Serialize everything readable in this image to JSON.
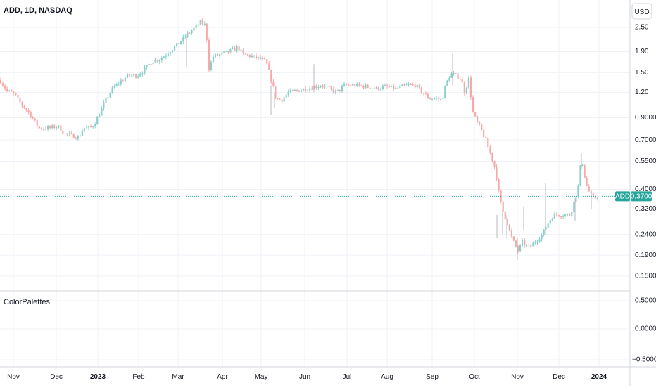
{
  "header": {
    "symbol_title": "ADD, 1D, NASDAQ"
  },
  "currency_button": "USD",
  "indicator_pane": {
    "title": "ColorPalettes",
    "y_ticks": [
      "0.5000",
      "0.0000",
      "−0.5000"
    ]
  },
  "price_badge": {
    "symbol": "ADD",
    "value": "0.3700"
  },
  "colors": {
    "up": "#26a69a",
    "down": "#ef5350",
    "up_light": "#89d0c9",
    "down_light": "#f7a9a7",
    "grid": "#eef1f6",
    "text": "#131722",
    "badge": "#26a69a"
  },
  "chart_data": {
    "type": "candlestick",
    "y_scale": "log",
    "ylim": [
      0.133,
      3.2
    ],
    "y_ticks": [
      {
        "label": "2.50",
        "value": 2.5
      },
      {
        "label": "1.90",
        "value": 1.9
      },
      {
        "label": "1.50",
        "value": 1.5
      },
      {
        "label": "1.20",
        "value": 1.2
      },
      {
        "label": "0.9000",
        "value": 0.9
      },
      {
        "label": "0.7000",
        "value": 0.7
      },
      {
        "label": "0.5500",
        "value": 0.55
      },
      {
        "label": "0.4000",
        "value": 0.4
      },
      {
        "label": "0.3200",
        "value": 0.32
      },
      {
        "label": "0.2400",
        "value": 0.24
      },
      {
        "label": "0.1900",
        "value": 0.19
      },
      {
        "label": "0.1500",
        "value": 0.15
      }
    ],
    "x_ticks": [
      {
        "label": "Nov",
        "bold": false
      },
      {
        "label": "Dec",
        "bold": false
      },
      {
        "label": "2023",
        "bold": true
      },
      {
        "label": "Feb",
        "bold": false
      },
      {
        "label": "Mar",
        "bold": false
      },
      {
        "label": "Apr",
        "bold": false
      },
      {
        "label": "May",
        "bold": false
      },
      {
        "label": "Jun",
        "bold": false
      },
      {
        "label": "Jul",
        "bold": false
      },
      {
        "label": "Aug",
        "bold": false
      },
      {
        "label": "Sep",
        "bold": false
      },
      {
        "label": "Oct",
        "bold": false
      },
      {
        "label": "Nov",
        "bold": false
      },
      {
        "label": "Dec",
        "bold": false
      },
      {
        "label": "2024",
        "bold": true
      }
    ],
    "series_anchor": [
      [
        0,
        1.38
      ],
      [
        10,
        1.22
      ],
      [
        20,
        1.18
      ],
      [
        30,
        1.05
      ],
      [
        42,
        0.95
      ],
      [
        55,
        0.8
      ],
      [
        70,
        0.8
      ],
      [
        82,
        0.82
      ],
      [
        92,
        0.75
      ],
      [
        105,
        0.73
      ],
      [
        112,
        0.72
      ],
      [
        118,
        0.8
      ],
      [
        128,
        0.8
      ],
      [
        135,
        0.85
      ],
      [
        142,
        0.95
      ],
      [
        150,
        1.1
      ],
      [
        160,
        1.25
      ],
      [
        170,
        1.35
      ],
      [
        182,
        1.45
      ],
      [
        195,
        1.45
      ],
      [
        205,
        1.55
      ],
      [
        215,
        1.7
      ],
      [
        228,
        1.75
      ],
      [
        240,
        1.9
      ],
      [
        255,
        2.1
      ],
      [
        265,
        2.3
      ],
      [
        275,
        2.45
      ],
      [
        285,
        2.65
      ],
      [
        290,
        2.6
      ],
      [
        293,
        2.5
      ],
      [
        296,
        1.55
      ],
      [
        303,
        1.8
      ],
      [
        315,
        1.85
      ],
      [
        325,
        1.9
      ],
      [
        338,
        2.0
      ],
      [
        345,
        1.85
      ],
      [
        358,
        1.8
      ],
      [
        370,
        1.75
      ],
      [
        378,
        1.7
      ],
      [
        385,
        1.4
      ],
      [
        392,
        1.12
      ],
      [
        400,
        1.1
      ],
      [
        410,
        1.2
      ],
      [
        420,
        1.22
      ],
      [
        435,
        1.25
      ],
      [
        448,
        1.28
      ],
      [
        458,
        1.3
      ],
      [
        468,
        1.25
      ],
      [
        478,
        1.2
      ],
      [
        490,
        1.3
      ],
      [
        505,
        1.3
      ],
      [
        520,
        1.28
      ],
      [
        535,
        1.25
      ],
      [
        548,
        1.28
      ],
      [
        562,
        1.25
      ],
      [
        578,
        1.3
      ],
      [
        590,
        1.3
      ],
      [
        600,
        1.2
      ],
      [
        610,
        1.12
      ],
      [
        620,
        1.12
      ],
      [
        628,
        1.1
      ],
      [
        633,
        1.3
      ],
      [
        640,
        1.48
      ],
      [
        648,
        1.45
      ],
      [
        655,
        1.4
      ],
      [
        660,
        1.2
      ],
      [
        666,
        1.4
      ],
      [
        672,
        0.95
      ],
      [
        678,
        0.85
      ],
      [
        684,
        0.78
      ],
      [
        690,
        0.7
      ],
      [
        698,
        0.58
      ],
      [
        704,
        0.5
      ],
      [
        710,
        0.36
      ],
      [
        715,
        0.31
      ],
      [
        720,
        0.28
      ],
      [
        725,
        0.24
      ],
      [
        730,
        0.22
      ],
      [
        736,
        0.2
      ],
      [
        742,
        0.22
      ],
      [
        748,
        0.21
      ],
      [
        754,
        0.21
      ],
      [
        762,
        0.225
      ],
      [
        770,
        0.24
      ],
      [
        778,
        0.27
      ],
      [
        786,
        0.3
      ],
      [
        794,
        0.3
      ],
      [
        802,
        0.3
      ],
      [
        810,
        0.3
      ],
      [
        816,
        0.35
      ],
      [
        822,
        0.42
      ],
      [
        826,
        0.58
      ],
      [
        832,
        0.43
      ],
      [
        838,
        0.38
      ],
      [
        844,
        0.36
      ],
      [
        850,
        0.37
      ]
    ],
    "spikes": [
      [
        265,
        1.6,
        2.3
      ],
      [
        385,
        0.93,
        1.3
      ],
      [
        390,
        1.0,
        1.2
      ],
      [
        446,
        1.2,
        1.65
      ],
      [
        643,
        1.3,
        1.85
      ],
      [
        706,
        0.23,
        0.3
      ],
      [
        714,
        0.24,
        0.32
      ],
      [
        720,
        0.23,
        0.3
      ],
      [
        735,
        0.18,
        0.23
      ],
      [
        744,
        0.25,
        0.33
      ],
      [
        775,
        0.24,
        0.43
      ],
      [
        817,
        0.28,
        0.36
      ],
      [
        826,
        0.5,
        0.6
      ],
      [
        840,
        0.32,
        0.4
      ]
    ],
    "last_price": 0.37
  }
}
